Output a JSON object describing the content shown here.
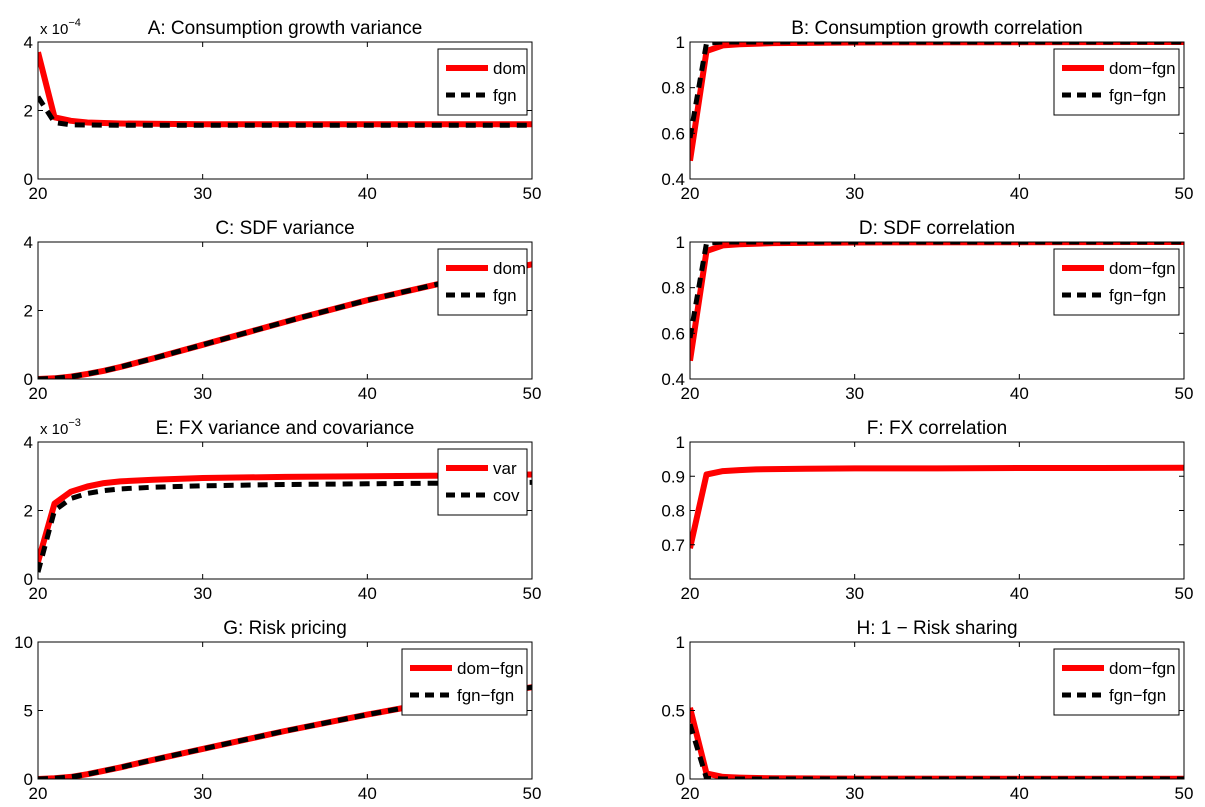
{
  "chart_data": [
    {
      "type": "line",
      "title": "A: Consumption growth variance",
      "multiplier_base": "x 10",
      "multiplier_exp": "−4",
      "xlim": [
        20,
        50
      ],
      "ylim": [
        0,
        4
      ],
      "xticks": [
        "20",
        "30",
        "40",
        "50"
      ],
      "yticks": [
        "0",
        "2",
        "4"
      ],
      "legend_position": "top-right",
      "series": [
        {
          "name": "dom",
          "color": "#ff0000",
          "style": "solid",
          "x": [
            20,
            21,
            22,
            23,
            25,
            30,
            40,
            50
          ],
          "y": [
            3.7,
            1.8,
            1.7,
            1.65,
            1.62,
            1.6,
            1.6,
            1.6
          ]
        },
        {
          "name": "fgn",
          "color": "#000000",
          "style": "dashed",
          "x": [
            20,
            21,
            22,
            25,
            30,
            40,
            50
          ],
          "y": [
            2.4,
            1.65,
            1.58,
            1.57,
            1.57,
            1.57,
            1.57
          ]
        }
      ]
    },
    {
      "type": "line",
      "title": "B: Consumption growth correlation",
      "xlim": [
        20,
        50
      ],
      "ylim": [
        0.4,
        1
      ],
      "xticks": [
        "20",
        "30",
        "40",
        "50"
      ],
      "yticks": [
        "0.4",
        "0.6",
        "0.8",
        "1"
      ],
      "legend_position": "top-right",
      "series": [
        {
          "name": "dom−fgn",
          "color": "#ff0000",
          "style": "solid",
          "x": [
            20,
            21,
            22,
            23,
            25,
            30,
            40,
            50
          ],
          "y": [
            0.48,
            0.96,
            0.985,
            0.99,
            0.995,
            0.998,
            0.999,
            1.0
          ]
        },
        {
          "name": "fgn−fgn",
          "color": "#000000",
          "style": "dashed",
          "x": [
            20,
            21,
            22,
            25,
            30,
            40,
            50
          ],
          "y": [
            0.58,
            0.995,
            1.0,
            1.0,
            1.0,
            1.0,
            1.0
          ]
        }
      ]
    },
    {
      "type": "line",
      "title": "C: SDF variance",
      "xlim": [
        20,
        50
      ],
      "ylim": [
        0,
        4
      ],
      "xticks": [
        "20",
        "30",
        "40",
        "50"
      ],
      "yticks": [
        "0",
        "2",
        "4"
      ],
      "legend_position": "top-right",
      "series": [
        {
          "name": "dom",
          "color": "#ff0000",
          "style": "solid",
          "x": [
            20,
            21,
            22,
            23,
            24,
            25,
            27,
            30,
            33,
            36,
            40,
            45,
            50
          ],
          "y": [
            0,
            0.02,
            0.07,
            0.15,
            0.24,
            0.35,
            0.6,
            1.0,
            1.4,
            1.8,
            2.3,
            2.85,
            3.35
          ]
        },
        {
          "name": "fgn",
          "color": "#000000",
          "style": "dashed",
          "x": [
            20,
            21,
            22,
            23,
            24,
            25,
            27,
            30,
            33,
            36,
            40,
            45,
            50
          ],
          "y": [
            0,
            0.02,
            0.07,
            0.15,
            0.24,
            0.35,
            0.6,
            1.0,
            1.4,
            1.8,
            2.3,
            2.85,
            3.35
          ]
        }
      ]
    },
    {
      "type": "line",
      "title": "D: SDF correlation",
      "xlim": [
        20,
        50
      ],
      "ylim": [
        0.4,
        1
      ],
      "xticks": [
        "20",
        "30",
        "40",
        "50"
      ],
      "yticks": [
        "0.4",
        "0.6",
        "0.8",
        "1"
      ],
      "legend_position": "top-right",
      "series": [
        {
          "name": "dom−fgn",
          "color": "#ff0000",
          "style": "solid",
          "x": [
            20,
            21,
            22,
            23,
            25,
            30,
            40,
            50
          ],
          "y": [
            0.48,
            0.96,
            0.985,
            0.99,
            0.995,
            0.998,
            0.999,
            1.0
          ]
        },
        {
          "name": "fgn−fgn",
          "color": "#000000",
          "style": "dashed",
          "x": [
            20,
            21,
            22,
            25,
            30,
            40,
            50
          ],
          "y": [
            0.58,
            0.995,
            1.0,
            1.0,
            1.0,
            1.0,
            1.0
          ]
        }
      ]
    },
    {
      "type": "line",
      "title": "E: FX variance and covariance",
      "multiplier_base": "x 10",
      "multiplier_exp": "−3",
      "xlim": [
        20,
        50
      ],
      "ylim": [
        0,
        4
      ],
      "xticks": [
        "20",
        "30",
        "40",
        "50"
      ],
      "yticks": [
        "0",
        "2",
        "4"
      ],
      "legend_position": "top-right",
      "series": [
        {
          "name": "var",
          "color": "#ff0000",
          "style": "solid",
          "x": [
            20,
            21,
            22,
            23,
            24,
            25,
            27,
            30,
            35,
            40,
            45,
            50
          ],
          "y": [
            0.5,
            2.2,
            2.55,
            2.7,
            2.8,
            2.85,
            2.9,
            2.95,
            2.98,
            3.0,
            3.02,
            3.05
          ]
        },
        {
          "name": "cov",
          "color": "#000000",
          "style": "dashed",
          "x": [
            20,
            21,
            22,
            23,
            24,
            25,
            27,
            30,
            35,
            40,
            45,
            50
          ],
          "y": [
            0.2,
            2.0,
            2.35,
            2.5,
            2.58,
            2.63,
            2.68,
            2.72,
            2.76,
            2.78,
            2.8,
            2.82
          ]
        }
      ]
    },
    {
      "type": "line",
      "title": "F: FX correlation",
      "xlim": [
        20,
        50
      ],
      "ylim": [
        0.6,
        1
      ],
      "xticks": [
        "20",
        "30",
        "40",
        "50"
      ],
      "yticks": [
        "0.7",
        "0.8",
        "0.9",
        "1"
      ],
      "series": [
        {
          "color": "#ff0000",
          "style": "solid",
          "x": [
            20,
            21,
            22,
            23,
            24,
            25,
            27,
            30,
            35,
            40,
            45,
            50
          ],
          "y": [
            0.69,
            0.905,
            0.915,
            0.918,
            0.92,
            0.921,
            0.922,
            0.923,
            0.923,
            0.924,
            0.924,
            0.925
          ]
        }
      ]
    },
    {
      "type": "line",
      "title": "G: Risk pricing",
      "xlim": [
        20,
        50
      ],
      "ylim": [
        0,
        10
      ],
      "xticks": [
        "20",
        "30",
        "40",
        "50"
      ],
      "yticks": [
        "0",
        "5",
        "10"
      ],
      "legend_position": "top-right",
      "series": [
        {
          "name": "dom−fgn",
          "color": "#ff0000",
          "style": "solid",
          "x": [
            20,
            21,
            22,
            23,
            24,
            25,
            27,
            30,
            35,
            40,
            45,
            50
          ],
          "y": [
            0,
            0.05,
            0.15,
            0.35,
            0.6,
            0.85,
            1.4,
            2.2,
            3.5,
            4.7,
            5.8,
            6.7
          ]
        },
        {
          "name": "fgn−fgn",
          "color": "#000000",
          "style": "dashed",
          "x": [
            20,
            21,
            22,
            23,
            24,
            25,
            27,
            30,
            35,
            40,
            45,
            50
          ],
          "y": [
            0,
            0.05,
            0.15,
            0.35,
            0.6,
            0.85,
            1.4,
            2.2,
            3.5,
            4.7,
            5.8,
            6.7
          ]
        }
      ]
    },
    {
      "type": "line",
      "title": "H: 1 − Risk sharing",
      "xlim": [
        20,
        50
      ],
      "ylim": [
        0,
        1
      ],
      "xticks": [
        "20",
        "30",
        "40",
        "50"
      ],
      "yticks": [
        "0",
        "0.5",
        "1"
      ],
      "legend_position": "top-right",
      "series": [
        {
          "name": "dom−fgn",
          "color": "#ff0000",
          "style": "solid",
          "x": [
            20,
            21,
            22,
            23,
            25,
            30,
            40,
            50
          ],
          "y": [
            0.52,
            0.04,
            0.015,
            0.01,
            0.005,
            0.003,
            0.002,
            0.002
          ]
        },
        {
          "name": "fgn−fgn",
          "color": "#000000",
          "style": "dashed",
          "x": [
            20,
            21,
            22,
            25,
            30,
            40,
            50
          ],
          "y": [
            0.4,
            0.005,
            0.0,
            0.0,
            0.0,
            0.0,
            0.0
          ]
        }
      ]
    }
  ]
}
